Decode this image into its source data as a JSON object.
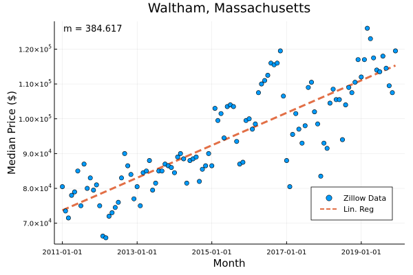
{
  "chart_data": {
    "type": "scatter",
    "title": "Waltham, Massachusetts",
    "xlabel": "Month",
    "ylabel": "Median Price ($)",
    "annotation": "m = 384.617",
    "xlim": [
      "2010-10-15",
      "2020-03-01"
    ],
    "ylim": [
      64000,
      128000
    ],
    "x_ticks": [
      {
        "value": "2011-01-01",
        "label": "2011-01-01"
      },
      {
        "value": "2013-01-01",
        "label": "2013-01-01"
      },
      {
        "value": "2015-01-01",
        "label": "2015-01-01"
      },
      {
        "value": "2017-01-01",
        "label": "2017-01-01"
      },
      {
        "value": "2019-01-01",
        "label": "2019-01-01"
      }
    ],
    "y_ticks": [
      {
        "value": 70000,
        "mantissa": "7.0×10",
        "exp": "4"
      },
      {
        "value": 80000,
        "mantissa": "8.0×10",
        "exp": "4"
      },
      {
        "value": 90000,
        "mantissa": "9.0×10",
        "exp": "4"
      },
      {
        "value": 100000,
        "mantissa": "1.00×10",
        "exp": "5"
      },
      {
        "value": 110000,
        "mantissa": "1.10×10",
        "exp": "5"
      },
      {
        "value": 120000,
        "mantissa": "1.20×10",
        "exp": "5"
      }
    ],
    "grid": true,
    "legend": {
      "position": "bottom-right",
      "entries": [
        {
          "label": "Zillow Data",
          "kind": "marker",
          "color": "#009af9"
        },
        {
          "label": "Lin. Reg",
          "kind": "dashed-line",
          "color": "#e26f46"
        }
      ]
    },
    "series": [
      {
        "name": "Zillow Data",
        "color": "#009af9",
        "x": [
          "2011-01-01",
          "2011-02-01",
          "2011-03-01",
          "2011-04-01",
          "2011-05-01",
          "2011-06-01",
          "2011-07-01",
          "2011-08-01",
          "2011-09-01",
          "2011-10-01",
          "2011-11-01",
          "2011-12-01",
          "2012-01-01",
          "2012-02-01",
          "2012-03-01",
          "2012-04-01",
          "2012-05-01",
          "2012-06-01",
          "2012-07-01",
          "2012-08-01",
          "2012-09-01",
          "2012-10-01",
          "2012-11-01",
          "2012-12-01",
          "2013-01-01",
          "2013-02-01",
          "2013-03-01",
          "2013-04-01",
          "2013-05-01",
          "2013-06-01",
          "2013-07-01",
          "2013-08-01",
          "2013-09-01",
          "2013-10-01",
          "2013-11-01",
          "2013-12-01",
          "2014-01-01",
          "2014-02-01",
          "2014-03-01",
          "2014-04-01",
          "2014-05-01",
          "2014-06-01",
          "2014-07-01",
          "2014-08-01",
          "2014-09-01",
          "2014-10-01",
          "2014-11-01",
          "2014-12-01",
          "2015-01-01",
          "2015-02-01",
          "2015-03-01",
          "2015-04-01",
          "2015-05-01",
          "2015-06-01",
          "2015-07-01",
          "2015-08-01",
          "2015-09-01",
          "2015-10-01",
          "2015-11-01",
          "2015-12-01",
          "2016-01-01",
          "2016-02-01",
          "2016-03-01",
          "2016-04-01",
          "2016-05-01",
          "2016-06-01",
          "2016-07-01",
          "2016-08-01",
          "2016-09-01",
          "2016-10-01",
          "2016-11-01",
          "2016-12-01",
          "2017-01-01",
          "2017-02-01",
          "2017-03-01",
          "2017-04-01",
          "2017-05-01",
          "2017-06-01",
          "2017-07-01",
          "2017-08-01",
          "2017-09-01",
          "2017-10-01",
          "2017-11-01",
          "2017-12-01",
          "2018-01-01",
          "2018-02-01",
          "2018-03-01",
          "2018-04-01",
          "2018-05-01",
          "2018-06-01",
          "2018-07-01",
          "2018-08-01",
          "2018-09-01",
          "2018-10-01",
          "2018-11-01",
          "2018-12-01",
          "2019-01-01",
          "2019-02-01",
          "2019-03-01",
          "2019-04-01",
          "2019-05-01",
          "2019-06-01",
          "2019-07-01",
          "2019-08-01",
          "2019-09-01",
          "2019-10-01",
          "2019-11-01",
          "2019-12-01"
        ],
        "y": [
          80500,
          73500,
          71500,
          78000,
          79000,
          85000,
          75000,
          87000,
          80000,
          83000,
          79500,
          81000,
          75000,
          66300,
          65800,
          72000,
          73000,
          74500,
          76000,
          83000,
          90000,
          86500,
          84000,
          77000,
          80500,
          75000,
          84500,
          85000,
          88000,
          79500,
          81500,
          85000,
          85000,
          87000,
          86500,
          86000,
          84500,
          89000,
          90000,
          88500,
          81500,
          88000,
          88500,
          89000,
          82000,
          85500,
          86500,
          90000,
          86500,
          103000,
          99500,
          101500,
          94500,
          103500,
          104000,
          103500,
          93500,
          87000,
          87500,
          99500,
          100000,
          97000,
          98500,
          107500,
          110000,
          111000,
          112500,
          116000,
          115500,
          116000,
          119500,
          106500,
          88000,
          80500,
          95500,
          101500,
          97000,
          93000,
          98000,
          109000,
          110500,
          102000,
          98500,
          83500,
          93000,
          91500,
          104500,
          108500,
          105500,
          105500,
          94000,
          104000,
          109000,
          107500,
          110500,
          117000,
          112000,
          117000,
          126000,
          123000,
          117500,
          114000,
          113500,
          118000,
          114500,
          109500,
          107500,
          119500
        ]
      },
      {
        "name": "Lin. Reg",
        "kind": "line",
        "color": "#e26f46",
        "x": [
          "2011-01-01",
          "2019-12-01"
        ],
        "y": [
          73700,
          115300
        ]
      }
    ]
  }
}
